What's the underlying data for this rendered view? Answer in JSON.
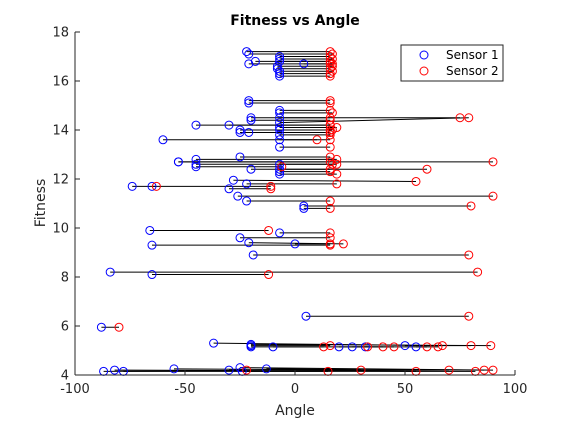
{
  "chart_data": {
    "type": "scatter",
    "title": "Fitness vs Angle",
    "xlabel": "Angle",
    "ylabel": "Fitness",
    "xlim": [
      -100,
      100
    ],
    "ylim": [
      4,
      18
    ],
    "xticks": [
      -100,
      -50,
      0,
      50,
      100
    ],
    "yticks": [
      4,
      6,
      8,
      10,
      12,
      14,
      16,
      18
    ],
    "legend_position": "top-right",
    "grid": false,
    "series": [
      {
        "name": "Sensor 1",
        "color": "#0000ff",
        "marker": "circle-open"
      },
      {
        "name": "Sensor 2",
        "color": "#ff0000",
        "marker": "circle-open"
      }
    ],
    "pairs": [
      [
        -22,
        17.2,
        16,
        17.2
      ],
      [
        -21,
        17.1,
        17,
        17.1
      ],
      [
        -18,
        16.8,
        16,
        16.8
      ],
      [
        -21,
        16.7,
        16,
        16.7
      ],
      [
        -7,
        16.8,
        16,
        16.8
      ],
      [
        4,
        16.7,
        17,
        16.7
      ],
      [
        -8,
        16.5,
        16,
        16.5
      ],
      [
        -8,
        16.6,
        17,
        16.6
      ],
      [
        -7,
        16.4,
        17,
        16.4
      ],
      [
        -7,
        16.3,
        16,
        16.3
      ],
      [
        -7,
        16.2,
        16,
        16.2
      ],
      [
        -7,
        16.9,
        17,
        16.9
      ],
      [
        -7,
        17.0,
        16,
        17.0
      ],
      [
        -21,
        15.2,
        16,
        15.2
      ],
      [
        -21,
        15.1,
        16,
        15.1
      ],
      [
        -7,
        14.8,
        16,
        14.8
      ],
      [
        -7,
        14.7,
        17,
        14.7
      ],
      [
        -7,
        14.5,
        75,
        14.5
      ],
      [
        -20,
        14.5,
        16,
        14.5
      ],
      [
        -7,
        14.3,
        79,
        14.5
      ],
      [
        -20,
        14.4,
        16,
        14.4
      ],
      [
        -45,
        14.2,
        16,
        14.2
      ],
      [
        -30,
        14.2,
        16,
        14.2
      ],
      [
        -7,
        14.1,
        19,
        14.1
      ],
      [
        -25,
        14.0,
        16,
        14.0
      ],
      [
        -7,
        14.0,
        17,
        14.0
      ],
      [
        -25,
        13.9,
        16,
        13.9
      ],
      [
        -21,
        13.9,
        16,
        13.9
      ],
      [
        -7,
        13.8,
        16,
        13.8
      ],
      [
        -60,
        13.6,
        16,
        13.6
      ],
      [
        -7,
        13.6,
        10,
        13.6
      ],
      [
        -7,
        13.3,
        16,
        13.3
      ],
      [
        -25,
        12.9,
        16,
        12.9
      ],
      [
        -53,
        12.7,
        90,
        12.7
      ],
      [
        -45,
        12.8,
        19,
        12.8
      ],
      [
        -45,
        12.6,
        17,
        12.6
      ],
      [
        -7,
        12.6,
        19,
        12.6
      ],
      [
        -45,
        12.5,
        -6,
        12.5
      ],
      [
        -7,
        12.4,
        60,
        12.4
      ],
      [
        -20,
        12.4,
        16,
        12.4
      ],
      [
        -7,
        12.3,
        16,
        12.3
      ],
      [
        -7,
        12.2,
        19,
        12.2
      ],
      [
        -53,
        12.7,
        16,
        12.7
      ],
      [
        -28,
        11.95,
        55,
        11.9
      ],
      [
        -22,
        11.8,
        19,
        11.8
      ],
      [
        -74,
        11.7,
        -63,
        11.7
      ],
      [
        -65,
        11.7,
        -11,
        11.7
      ],
      [
        -30,
        11.6,
        -11,
        11.6
      ],
      [
        -26,
        11.3,
        90,
        11.3
      ],
      [
        -22,
        11.1,
        16,
        11.1
      ],
      [
        4,
        10.9,
        80,
        10.9
      ],
      [
        4,
        10.8,
        16,
        10.8
      ],
      [
        -66,
        9.9,
        -12,
        9.9
      ],
      [
        -7,
        9.8,
        16,
        9.8
      ],
      [
        -25,
        9.6,
        16,
        9.6
      ],
      [
        -21,
        9.4,
        22,
        9.35
      ],
      [
        -65,
        9.3,
        16,
        9.3
      ],
      [
        0,
        9.35,
        16,
        9.35
      ],
      [
        -19,
        8.9,
        79,
        8.9
      ],
      [
        -84,
        8.2,
        83,
        8.2
      ],
      [
        -65,
        8.1,
        -12,
        8.1
      ],
      [
        5,
        6.4,
        79,
        6.4
      ],
      [
        -88,
        5.95,
        -80,
        5.95
      ],
      [
        -20,
        5.25,
        89,
        5.2
      ],
      [
        -20,
        5.2,
        16,
        5.2
      ],
      [
        -20,
        5.15,
        13,
        5.15
      ],
      [
        -37,
        5.3,
        67,
        5.2
      ],
      [
        20,
        5.15,
        60,
        5.15
      ],
      [
        26,
        5.15,
        40,
        5.15
      ],
      [
        32,
        5.15,
        45,
        5.15
      ],
      [
        50,
        5.2,
        80,
        5.2
      ],
      [
        55,
        5.15,
        65,
        5.15
      ],
      [
        -10,
        5.15,
        33,
        5.15
      ],
      [
        -25,
        4.3,
        90,
        4.2
      ],
      [
        -13,
        4.25,
        86,
        4.2
      ],
      [
        -87,
        4.15,
        70,
        4.2
      ],
      [
        -82,
        4.2,
        55,
        4.15
      ],
      [
        -78,
        4.15,
        15,
        4.15
      ],
      [
        -55,
        4.25,
        30,
        4.2
      ],
      [
        -30,
        4.2,
        -22,
        4.2
      ],
      [
        -24,
        4.15,
        82,
        4.15
      ]
    ]
  }
}
